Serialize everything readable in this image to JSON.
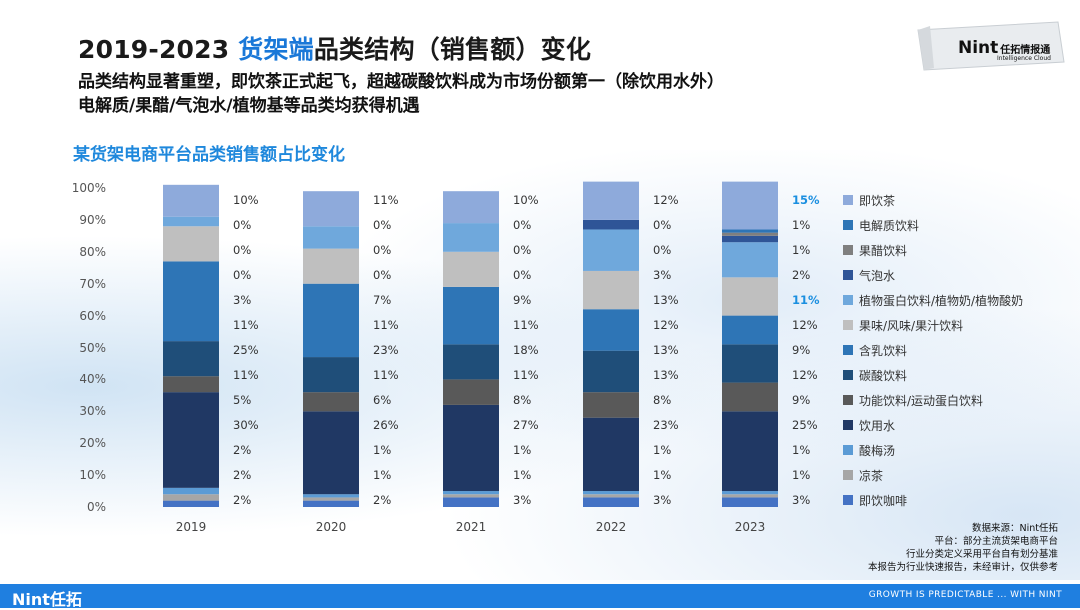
{
  "header": {
    "title_prefix": "2019-2023 ",
    "title_highlight": "货架端",
    "title_suffix": "品类结构（销售额）变化",
    "subtitle_line1": "品类结构显著重塑，即饮茶正式起飞，超越碳酸饮料成为市场份额第一（除饮用水外）",
    "subtitle_line2": "电解质/果醋/气泡水/植物基等品类均获得机遇",
    "section_title": "某货架电商平台品类销售额占比变化"
  },
  "logo": {
    "brand": "Nint",
    "brand_cn": "任拓情报通",
    "sub": "Intelligence Cloud"
  },
  "chart_data": {
    "type": "bar",
    "stacked": true,
    "title": "某货架电商平台品类销售额占比变化",
    "categories": [
      "2019",
      "2020",
      "2021",
      "2022",
      "2023"
    ],
    "ylim": [
      0,
      100
    ],
    "y_ticks": [
      "0%",
      "10%",
      "20%",
      "30%",
      "40%",
      "50%",
      "60%",
      "70%",
      "80%",
      "90%",
      "100%"
    ],
    "series_bottom_to_top": [
      {
        "name": "即饮咖啡",
        "color": "#4472c4",
        "values": [
          2,
          2,
          3,
          3,
          3
        ]
      },
      {
        "name": "凉茶",
        "color": "#a6a6a6",
        "values": [
          2,
          1,
          1,
          1,
          1
        ]
      },
      {
        "name": "酸梅汤",
        "color": "#5b9bd5",
        "values": [
          2,
          1,
          1,
          1,
          1
        ]
      },
      {
        "name": "饮用水",
        "color": "#203864",
        "values": [
          30,
          26,
          27,
          23,
          25
        ]
      },
      {
        "name": "功能饮料/运动蛋白饮料",
        "color": "#595959",
        "values": [
          5,
          6,
          8,
          8,
          9
        ]
      },
      {
        "name": "碳酸饮料",
        "color": "#1f4e79",
        "values": [
          11,
          11,
          11,
          13,
          12
        ]
      },
      {
        "name": "含乳饮料",
        "color": "#2e75b6",
        "values": [
          25,
          23,
          18,
          13,
          9
        ]
      },
      {
        "name": "果味/风味/果汁饮料",
        "color": "#bfbfbf",
        "values": [
          11,
          11,
          11,
          12,
          12
        ]
      },
      {
        "name": "植物蛋白饮料/植物奶/植物酸奶",
        "color": "#6fa8dc",
        "values": [
          3,
          7,
          9,
          13,
          11
        ]
      },
      {
        "name": "气泡水",
        "color": "#2f5597",
        "values": [
          0,
          0,
          0,
          3,
          2
        ]
      },
      {
        "name": "果醋饮料",
        "color": "#7f7f7f",
        "values": [
          0,
          0,
          0,
          0,
          1
        ]
      },
      {
        "name": "电解质饮料",
        "color": "#2e75b6",
        "values": [
          0,
          0,
          0,
          0,
          1
        ]
      },
      {
        "name": "即饮茶",
        "color": "#8eaadb",
        "values": [
          10,
          11,
          10,
          12,
          15
        ]
      }
    ],
    "labels_top_to_bottom": [
      [
        "10%",
        "0%",
        "0%",
        "0%",
        "3%",
        "11%",
        "25%",
        "11%",
        "5%",
        "30%",
        "2%",
        "2%",
        "2%"
      ],
      [
        "11%",
        "0%",
        "0%",
        "0%",
        "7%",
        "11%",
        "23%",
        "11%",
        "6%",
        "26%",
        "1%",
        "1%",
        "2%"
      ],
      [
        "10%",
        "0%",
        "0%",
        "0%",
        "9%",
        "11%",
        "18%",
        "11%",
        "8%",
        "27%",
        "1%",
        "1%",
        "3%"
      ],
      [
        "12%",
        "0%",
        "0%",
        "3%",
        "13%",
        "12%",
        "13%",
        "13%",
        "8%",
        "23%",
        "1%",
        "1%",
        "3%"
      ],
      [
        "15%",
        "1%",
        "1%",
        "2%",
        "11%",
        "12%",
        "9%",
        "12%",
        "9%",
        "25%",
        "1%",
        "1%",
        "3%"
      ]
    ],
    "highlighted_labels": [
      "2023:即饮茶",
      "2023:植物蛋白饮料/植物奶/植物酸奶"
    ],
    "legend_order": [
      "即饮茶",
      "电解质饮料",
      "果醋饮料",
      "气泡水",
      "植物蛋白饮料/植物奶/植物酸奶",
      "果味/风味/果汁饮料",
      "含乳饮料",
      "碳酸饮料",
      "功能饮料/运动蛋白饮料",
      "饮用水",
      "酸梅汤",
      "凉茶",
      "即饮咖啡"
    ],
    "legend_position": "right"
  },
  "notes": [
    "数据来源：Nint任拓",
    "平台：部分主流货架电商平台",
    "行业分类定义采用平台自有划分基准",
    "本报告为行业快速报告，未经审计，仅供参考"
  ],
  "footer": {
    "brand": "Nint任拓",
    "tagline": "GROWTH IS PREDICTABLE ... WITH NINT",
    "color": "#1f7fe0"
  }
}
